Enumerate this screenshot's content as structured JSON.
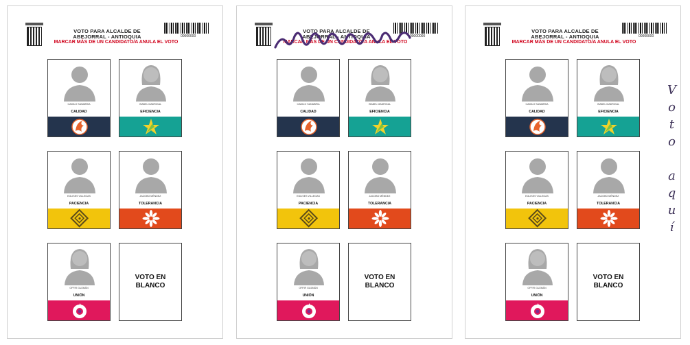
{
  "ballots": [
    {
      "id": 1,
      "title_line1": "VOTO PARA ALCALDE DE",
      "title_line2": "ABEJORRAL - ANTIOQUIA",
      "warning": "MARCAR MÁS DE UN CANDIDATO/A ANULA EL VOTO",
      "barcode_number": "00000000"
    },
    {
      "id": 2,
      "title_line1": "VOTO PARA ALCALDE DE",
      "title_line2": "ABEJORRAL - ANTIOQUIA",
      "warning": "MARCAR MÁS DE UN CANDIDATO/A ANULA EL VOTO",
      "barcode_number": "00000000"
    },
    {
      "id": 3,
      "title_line1": "VOTO PARA ALCALDE DE",
      "title_line2": "ABEJORRAL - ANTIOQUIA",
      "warning": "MARCAR MÁS DE UN CANDIDATO/A ANULA EL VOTO",
      "barcode_number": "00000000",
      "handwritten_note": "Voto aquí"
    }
  ],
  "candidates": [
    {
      "name": "CAMILO SANABRIA",
      "party": "CALIDAD",
      "color": "#24344d",
      "icon": "phoenix-logo"
    },
    {
      "name": "ISABEL MADRIGAL",
      "party": "EFICIENCIA",
      "color": "#15a294",
      "icon": "star-logo"
    },
    {
      "name": "EGLISES VILLEGAS",
      "party": "PACIENCIA",
      "color": "#f2c40c",
      "icon": "knot-logo"
    },
    {
      "name": "JACOBO MÉNDEZ",
      "party": "TOLERANCIA",
      "color": "#e24a1c",
      "icon": "flower-logo"
    },
    {
      "name": "OFFIR GUZMÁN",
      "party": "UNIÓN",
      "color": "#e0185c",
      "icon": "circle-hand-logo"
    }
  ],
  "blank_vote": {
    "line1": "VOTO EN",
    "line2": "BLANCO"
  }
}
